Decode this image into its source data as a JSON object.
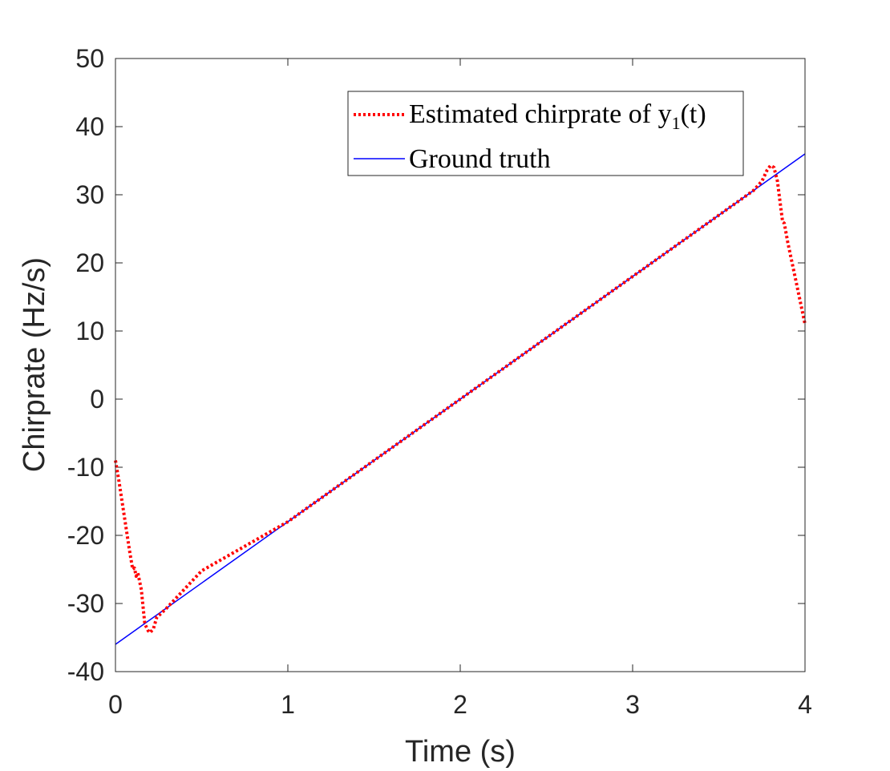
{
  "chart_data": {
    "type": "line",
    "title": "",
    "xlabel": "Time (s)",
    "ylabel": "Chirprate (Hz/s)",
    "xlim": [
      0,
      4
    ],
    "ylim": [
      -40,
      50
    ],
    "xticks": [
      0,
      1,
      2,
      3,
      4
    ],
    "yticks": [
      -40,
      -30,
      -20,
      -10,
      0,
      10,
      20,
      30,
      40,
      50
    ],
    "xtick_labels": [
      "0",
      "1",
      "2",
      "3",
      "4"
    ],
    "ytick_labels": [
      "-40",
      "-30",
      "-20",
      "-10",
      "0",
      "10",
      "20",
      "30",
      "40",
      "50"
    ],
    "grid": false,
    "legend_position": "top-right",
    "series": [
      {
        "name": "Estimated chirprate of y1(t)",
        "color": "#ff0000",
        "style": "dotted",
        "x": [
          0,
          0.02,
          0.05,
          0.08,
          0.1,
          0.11,
          0.12,
          0.13,
          0.15,
          0.17,
          0.19,
          0.2,
          0.22,
          0.24,
          0.25,
          0.3,
          0.5,
          1.0,
          1.5,
          2.0,
          2.5,
          3.0,
          3.5,
          3.7,
          3.75,
          3.78,
          3.8,
          3.82,
          3.84,
          3.86,
          3.87,
          3.88,
          3.9,
          3.95,
          4.0
        ],
        "y": [
          -9,
          -12,
          -17,
          -22,
          -25,
          -24.8,
          -26,
          -25.5,
          -28,
          -33,
          -34,
          -34.3,
          -33.7,
          -32,
          -31.8,
          -30.6,
          -25.2,
          -18,
          -9,
          0,
          9,
          18,
          27,
          30.6,
          32,
          33.6,
          34.3,
          34,
          32,
          28,
          26,
          25.8,
          23,
          17,
          11
        ]
      },
      {
        "name": "Ground truth",
        "color": "#0000ff",
        "style": "solid",
        "x": [
          0,
          4
        ],
        "y": [
          -36,
          36
        ]
      }
    ],
    "legend": {
      "entries": [
        {
          "text": "Estimated chirprate of y",
          "subscript": "1",
          "suffix": "(t)"
        },
        {
          "text": "Ground truth"
        }
      ]
    }
  }
}
